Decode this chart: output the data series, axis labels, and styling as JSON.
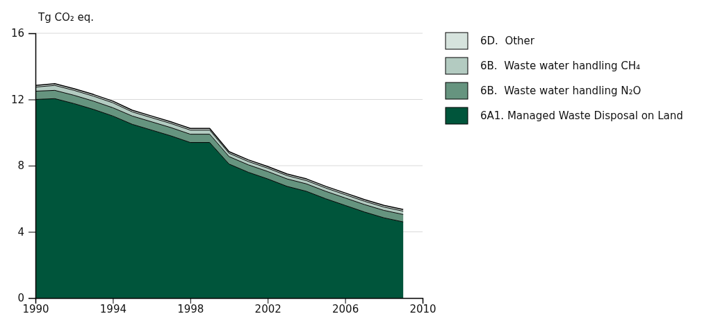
{
  "chart_data": {
    "type": "area",
    "stacked": true,
    "ylabel": "Tg CO₂ eq.",
    "x": [
      1990,
      1991,
      1992,
      1993,
      1994,
      1995,
      1996,
      1997,
      1998,
      1999,
      2000,
      2001,
      2002,
      2003,
      2004,
      2005,
      2006,
      2007,
      2008,
      2009
    ],
    "xlim": [
      1990,
      2010
    ],
    "xticks": [
      1990,
      1994,
      1998,
      2002,
      2006,
      2010
    ],
    "ylim": [
      0,
      16
    ],
    "yticks": [
      0,
      4,
      8,
      12,
      16
    ],
    "grid": "y",
    "legend": "top right",
    "series": [
      {
        "name": "6A1. Managed Waste Disposal on Land",
        "color": "#00553b",
        "values": [
          12.0,
          12.05,
          11.75,
          11.4,
          11.0,
          10.5,
          10.15,
          9.8,
          9.4,
          9.4,
          8.1,
          7.6,
          7.2,
          6.75,
          6.45,
          6.0,
          5.6,
          5.2,
          4.85,
          4.6
        ]
      },
      {
        "name": "6B.  Waste water handling N₂O",
        "color": "#66947f",
        "values": [
          0.5,
          0.5,
          0.5,
          0.5,
          0.5,
          0.5,
          0.5,
          0.5,
          0.5,
          0.5,
          0.45,
          0.45,
          0.45,
          0.45,
          0.45,
          0.45,
          0.45,
          0.45,
          0.45,
          0.45
        ]
      },
      {
        "name": "6B.  Waste water handling CH₄",
        "color": "#b3cbc1",
        "values": [
          0.25,
          0.3,
          0.3,
          0.3,
          0.3,
          0.25,
          0.25,
          0.25,
          0.25,
          0.25,
          0.2,
          0.2,
          0.2,
          0.2,
          0.2,
          0.2,
          0.2,
          0.2,
          0.2,
          0.2
        ]
      },
      {
        "name": "6D.  Other",
        "color": "#d6e3dd",
        "values": [
          0.1,
          0.1,
          0.1,
          0.1,
          0.1,
          0.1,
          0.1,
          0.1,
          0.1,
          0.1,
          0.1,
          0.1,
          0.1,
          0.1,
          0.1,
          0.1,
          0.1,
          0.1,
          0.1,
          0.1
        ]
      }
    ]
  }
}
